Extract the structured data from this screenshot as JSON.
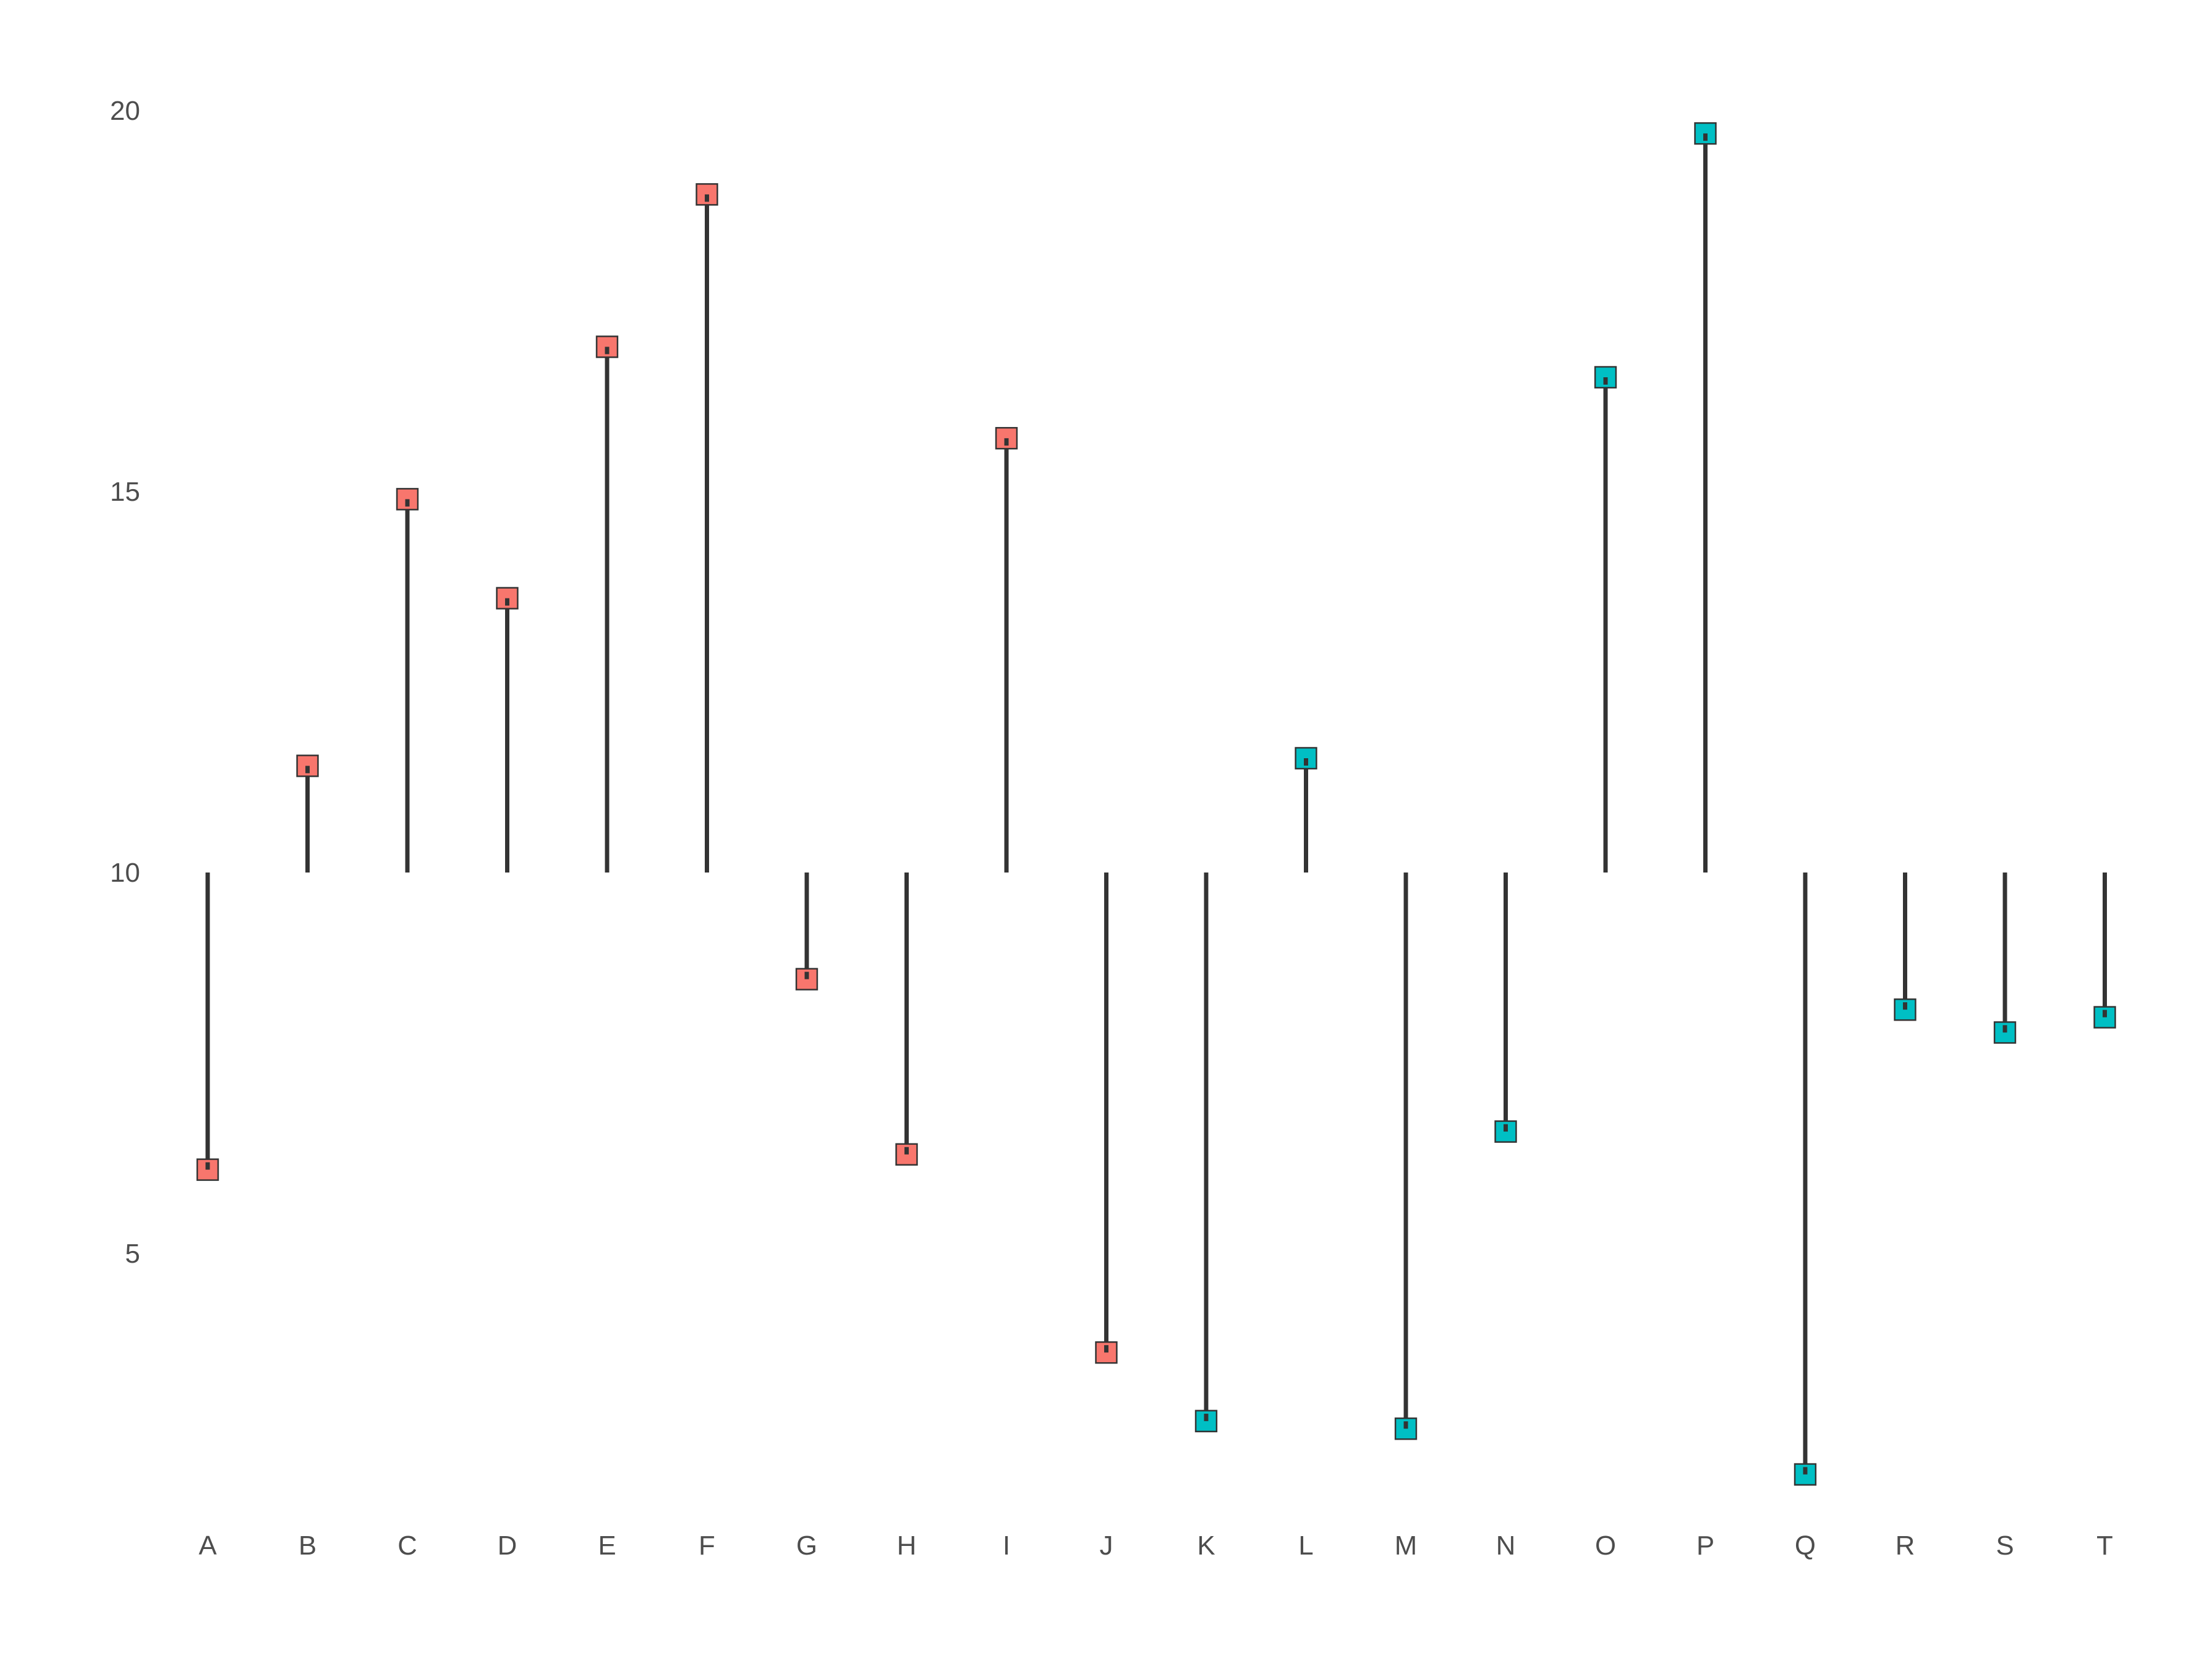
{
  "chart_data": {
    "type": "lollipop",
    "baseline": 10,
    "categories": [
      "A",
      "B",
      "C",
      "D",
      "E",
      "F",
      "G",
      "H",
      "I",
      "J",
      "K",
      "L",
      "M",
      "N",
      "O",
      "P",
      "Q",
      "R",
      "S",
      "T"
    ],
    "values": [
      6.1,
      11.4,
      14.9,
      13.6,
      16.9,
      18.9,
      8.6,
      6.3,
      15.7,
      3.7,
      2.8,
      11.5,
      2.7,
      6.6,
      16.5,
      19.7,
      2.1,
      8.2,
      7.9,
      8.1
    ],
    "groups": [
      "red",
      "red",
      "red",
      "red",
      "red",
      "red",
      "red",
      "red",
      "red",
      "red",
      "teal",
      "teal",
      "teal",
      "teal",
      "teal",
      "teal",
      "teal",
      "teal",
      "teal",
      "teal"
    ],
    "group_colors": {
      "red": "#f8766d",
      "teal": "#00bfc4"
    },
    "stem_color": "#333333",
    "y_ticks": [
      5,
      10,
      15,
      20
    ],
    "y_tick_labels": [
      "5",
      "10",
      "15",
      "20"
    ],
    "ylim": [
      1.4,
      20.7
    ],
    "title": "",
    "xlabel": "",
    "ylabel": "",
    "grid": false,
    "legend": "none"
  }
}
